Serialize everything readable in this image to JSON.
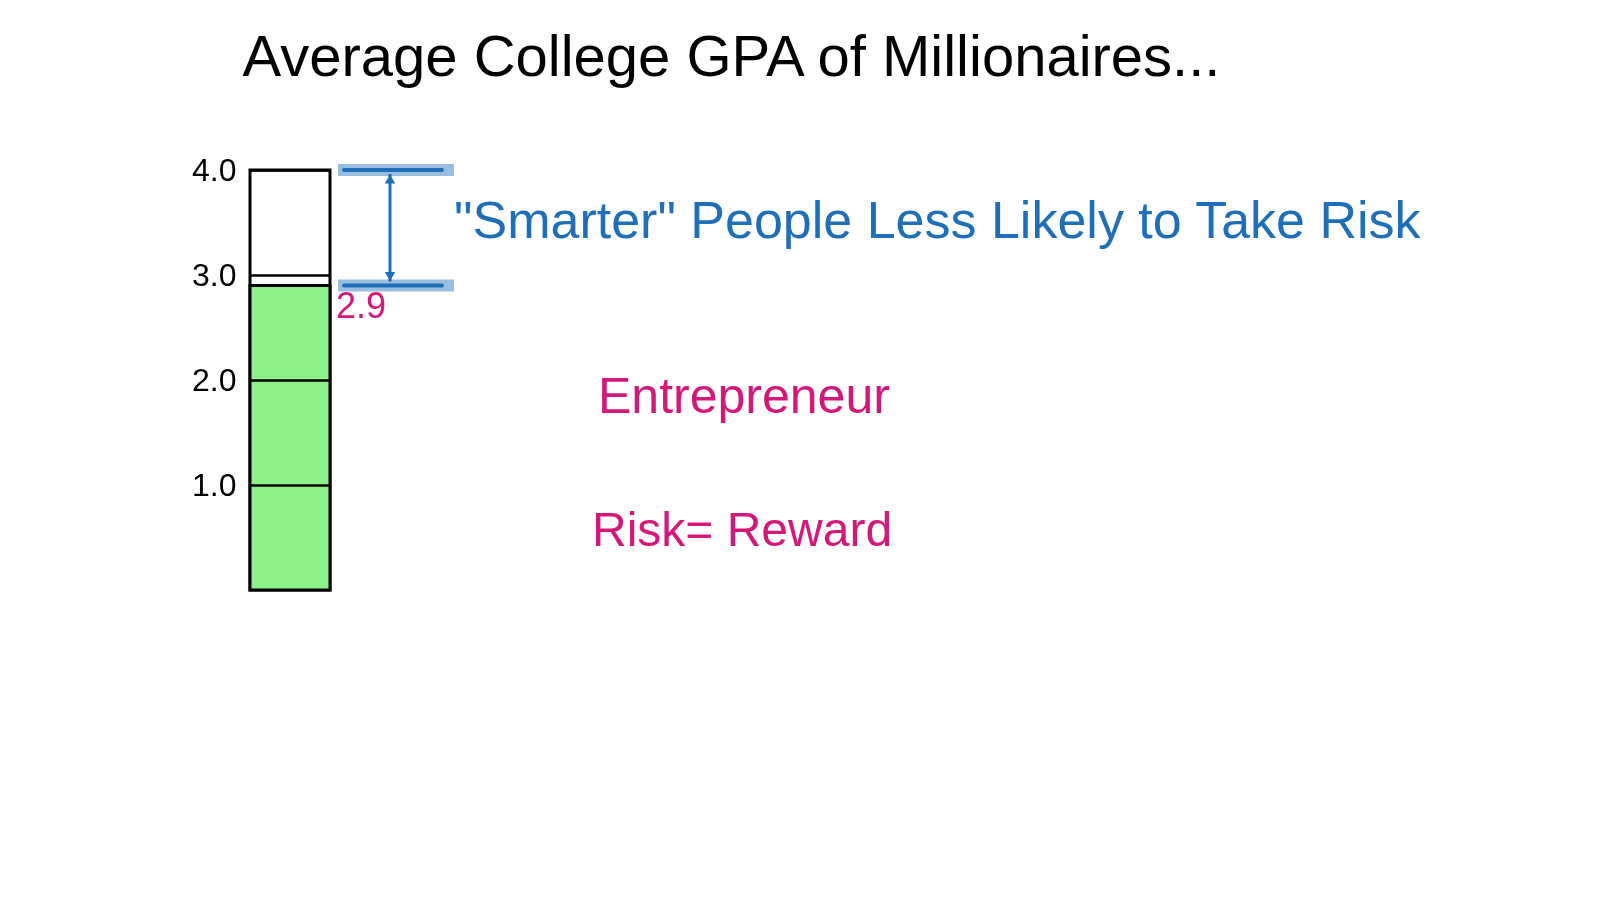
{
  "chart_data": {
    "type": "bar",
    "title": "Average College GPA of Millionaires...",
    "categories": [
      null
    ],
    "values": [
      2.9
    ],
    "color": "#8ef28a",
    "ylim": [
      0,
      4
    ],
    "yticks": [
      {
        "value": 1,
        "label": "1.0"
      },
      {
        "value": 2,
        "label": "2.0"
      },
      {
        "value": 3,
        "label": "3.0"
      },
      {
        "value": 4,
        "label": "4.0"
      }
    ],
    "grid": "y",
    "data_labels": true,
    "annotations": [
      "\"Smarter\" People Less Likely to Take Risk",
      "Entrepreneur",
      "Risk= Reward"
    ]
  }
}
